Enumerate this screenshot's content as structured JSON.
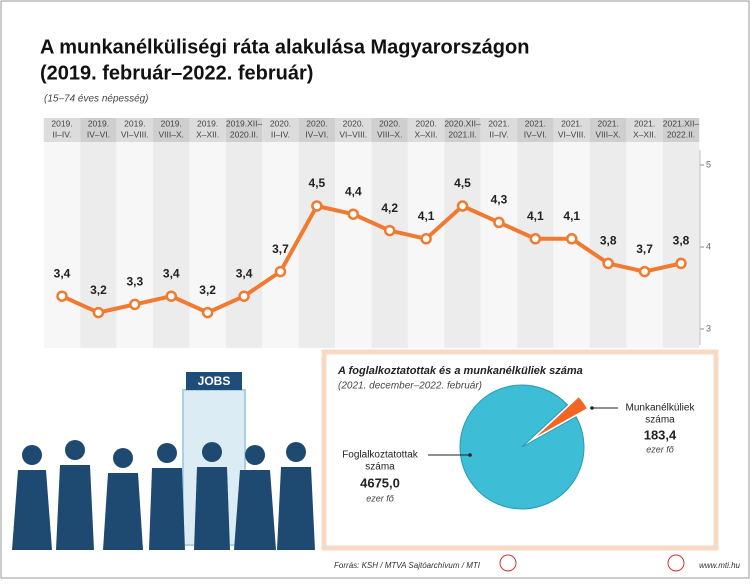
{
  "chart_data": [
    {
      "type": "line",
      "title": [
        "A munkanélküliségi ráta alakulása Magyarországon",
        "(2019. február–2022. február)"
      ],
      "subtitle": "(15–74 éves népesség)",
      "categories": [
        [
          "2019.",
          "II–IV."
        ],
        [
          "2019.",
          "IV–VI."
        ],
        [
          "2019.",
          "VI–VIII."
        ],
        [
          "2019.",
          "VIII–X."
        ],
        [
          "2019.",
          "X–XII."
        ],
        [
          "2019.XII–",
          "2020.II."
        ],
        [
          "2020.",
          "II–IV."
        ],
        [
          "2020.",
          "IV–VI."
        ],
        [
          "2020.",
          "VI–VIII."
        ],
        [
          "2020.",
          "VIII–X."
        ],
        [
          "2020.",
          "X–XII."
        ],
        [
          "2020.XII–",
          "2021.II."
        ],
        [
          "2021.",
          "II–IV."
        ],
        [
          "2021.",
          "IV–VI."
        ],
        [
          "2021.",
          "VI–VIII."
        ],
        [
          "2021.",
          "VIII–X."
        ],
        [
          "2021.",
          "X–XII."
        ],
        [
          "2021.XII–",
          "2022.II."
        ]
      ],
      "values": [
        3.4,
        3.2,
        3.3,
        3.4,
        3.2,
        3.4,
        3.7,
        4.5,
        4.4,
        4.2,
        4.1,
        4.5,
        4.3,
        4.1,
        4.1,
        3.8,
        3.7,
        3.8
      ],
      "value_labels": [
        "3,4",
        "3,2",
        "3,3",
        "3,4",
        "3,2",
        "3,4",
        "3,7",
        "4,5",
        "4,4",
        "4,2",
        "4,1",
        "4,5",
        "4,3",
        "4,1",
        "4,1",
        "3,8",
        "3,7",
        "3,8"
      ],
      "color": "#f07a30",
      "ylim": [
        3,
        5
      ],
      "yticks": [
        3,
        4,
        5
      ]
    },
    {
      "type": "pie",
      "title": "A foglalkoztatottak és a munkanélküliek száma",
      "subtitle": "(2021. december–2022. február)",
      "labels": [
        [
          "Foglalkoztatottak",
          "száma"
        ],
        [
          "Munkanélküliek",
          "száma"
        ]
      ],
      "values": [
        4675.0,
        183.4
      ],
      "value_labels": [
        "4675,0",
        "183,4"
      ],
      "unit": "ezer fő",
      "colors": [
        "#3dbdd6",
        "#f26522"
      ]
    }
  ],
  "sign": "JOBS",
  "footer": {
    "source": "Forrás: KSH / MTVA Sajtóarchívum / MTI",
    "website": "www.mti.hu"
  }
}
